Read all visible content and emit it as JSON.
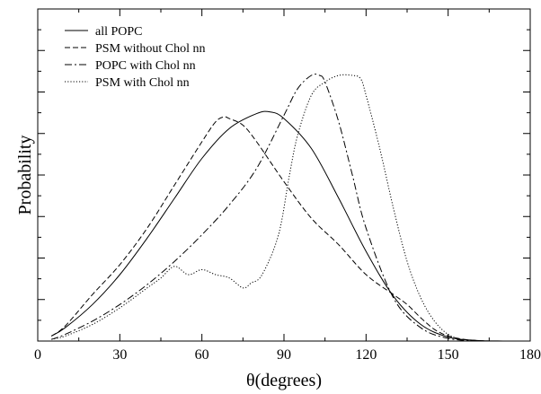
{
  "chart_data": {
    "type": "line",
    "title": "",
    "xlabel": "θ(degrees)",
    "ylabel": "Probability",
    "xlim": [
      0,
      180
    ],
    "ylim": [
      0,
      1.0
    ],
    "xticks": [
      0,
      30,
      60,
      90,
      120,
      150,
      180
    ],
    "grid": false,
    "legend_position": "top-left",
    "series": [
      {
        "name": "all POPC",
        "dash": "solid",
        "x": [
          5,
          10,
          20,
          30,
          40,
          50,
          60,
          70,
          80,
          85,
          90,
          100,
          110,
          120,
          130,
          140,
          150,
          160,
          170
        ],
        "y": [
          0.015,
          0.04,
          0.11,
          0.2,
          0.31,
          0.43,
          0.55,
          0.64,
          0.685,
          0.69,
          0.67,
          0.58,
          0.43,
          0.27,
          0.135,
          0.05,
          0.012,
          0.002,
          0.0
        ]
      },
      {
        "name": "PSM without Chol nn",
        "dash": "dash",
        "x": [
          5,
          10,
          20,
          30,
          40,
          50,
          60,
          65,
          68,
          70,
          75,
          80,
          90,
          100,
          110,
          120,
          130,
          135,
          140,
          145,
          150,
          155,
          160,
          165
        ],
        "y": [
          0.015,
          0.045,
          0.14,
          0.23,
          0.34,
          0.47,
          0.6,
          0.66,
          0.675,
          0.67,
          0.65,
          0.6,
          0.48,
          0.37,
          0.29,
          0.2,
          0.14,
          0.11,
          0.07,
          0.035,
          0.015,
          0.006,
          0.002,
          0.0
        ]
      },
      {
        "name": "POPC with Chol nn",
        "dash": "dashdot",
        "x": [
          5,
          10,
          20,
          30,
          40,
          50,
          60,
          70,
          80,
          90,
          95,
          100,
          103,
          105,
          110,
          115,
          120,
          130,
          140,
          150,
          160
        ],
        "y": [
          0.005,
          0.02,
          0.06,
          0.11,
          0.17,
          0.24,
          0.32,
          0.41,
          0.52,
          0.68,
          0.76,
          0.8,
          0.8,
          0.78,
          0.66,
          0.5,
          0.34,
          0.13,
          0.04,
          0.008,
          0.001
        ]
      },
      {
        "name": "PSM with Chol nn",
        "dash": "dot",
        "x": [
          5,
          10,
          20,
          30,
          40,
          45,
          50,
          55,
          60,
          65,
          70,
          75,
          78,
          82,
          88,
          92,
          95,
          100,
          105,
          110,
          115,
          118,
          120,
          125,
          130,
          135,
          140,
          145,
          150,
          155
        ],
        "y": [
          0.005,
          0.015,
          0.05,
          0.1,
          0.16,
          0.19,
          0.225,
          0.2,
          0.215,
          0.2,
          0.19,
          0.16,
          0.175,
          0.2,
          0.32,
          0.5,
          0.62,
          0.74,
          0.78,
          0.8,
          0.8,
          0.79,
          0.74,
          0.58,
          0.4,
          0.24,
          0.13,
          0.06,
          0.02,
          0.004
        ]
      }
    ]
  }
}
